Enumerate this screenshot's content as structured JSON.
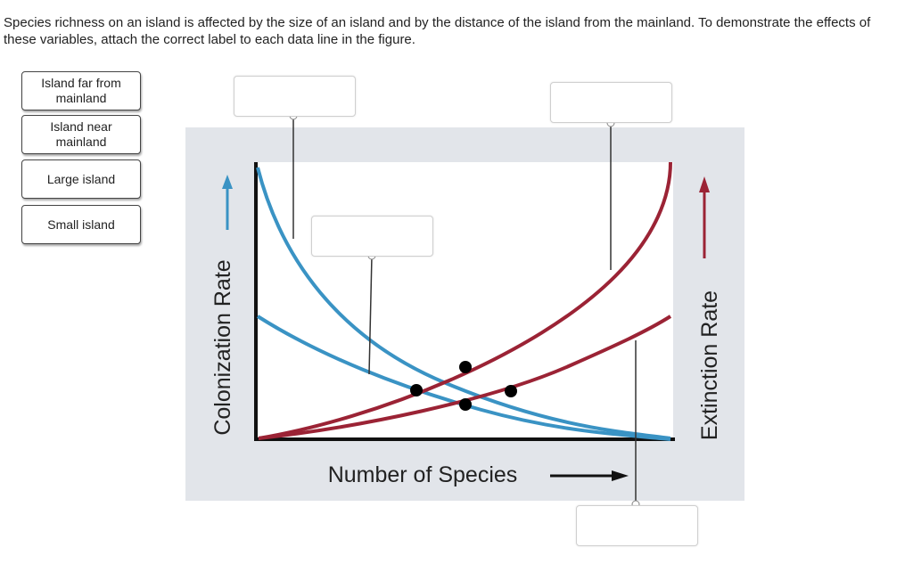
{
  "instructions": "Species richness on an island is affected by the size of an island and by the distance of the island from the mainland. To demonstrate the effects of these variables, attach the correct label to each data line in the figure.",
  "labels": [
    {
      "text": "Island far from mainland"
    },
    {
      "text": "Island near mainland"
    },
    {
      "text": "Large island"
    },
    {
      "text": "Small island"
    }
  ],
  "figure": {
    "left_axis_label": "Colonization Rate",
    "right_axis_label": "Extinction Rate",
    "x_axis_label": "Number of Species",
    "colors": {
      "colonization": "#3a93c4",
      "extinction": "#9b2335",
      "panel": "#e2e5ea",
      "axis": "#111111"
    }
  },
  "drop_zones": [
    {
      "value": ""
    },
    {
      "value": ""
    },
    {
      "value": ""
    },
    {
      "value": ""
    }
  ]
}
